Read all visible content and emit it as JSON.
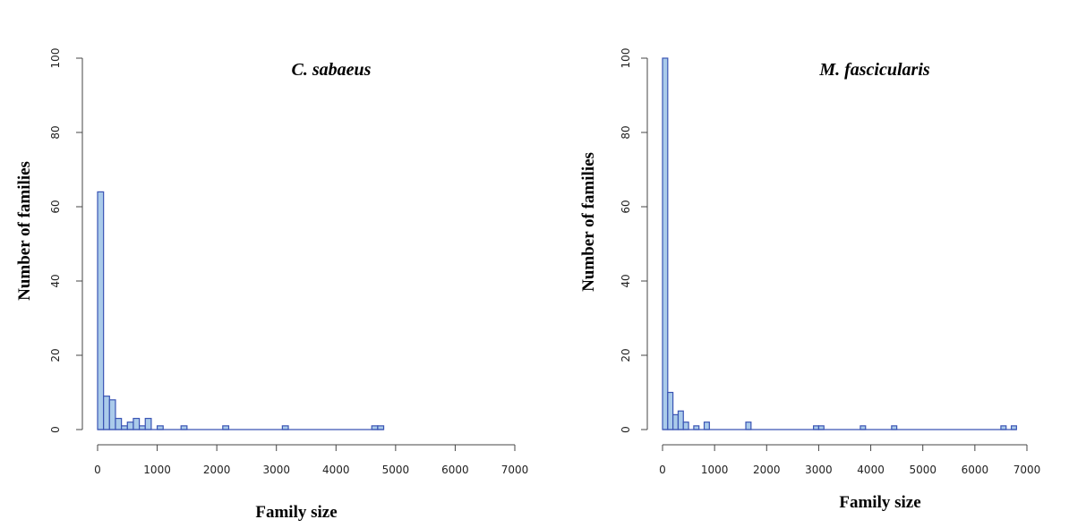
{
  "chart_data": [
    {
      "type": "bar",
      "title": "C. sabaeus",
      "xlabel": "Family size",
      "ylabel": "Number of families",
      "xlim": [
        0,
        7000
      ],
      "ylim": [
        0,
        100
      ],
      "x_ticks": [
        "0",
        "1000",
        "2000",
        "3000",
        "4000",
        "5000",
        "6000",
        "7000"
      ],
      "y_ticks": [
        "0",
        "20",
        "40",
        "60",
        "80",
        "100"
      ],
      "bin_width": 100,
      "bins": [
        {
          "start": 0,
          "count": 64
        },
        {
          "start": 100,
          "count": 9
        },
        {
          "start": 200,
          "count": 8
        },
        {
          "start": 300,
          "count": 3
        },
        {
          "start": 400,
          "count": 1
        },
        {
          "start": 500,
          "count": 2
        },
        {
          "start": 600,
          "count": 3
        },
        {
          "start": 700,
          "count": 1
        },
        {
          "start": 800,
          "count": 3
        },
        {
          "start": 1000,
          "count": 1
        },
        {
          "start": 1400,
          "count": 1
        },
        {
          "start": 2100,
          "count": 1
        },
        {
          "start": 3100,
          "count": 1
        },
        {
          "start": 4600,
          "count": 1
        },
        {
          "start": 4700,
          "count": 1
        }
      ],
      "data_range": [
        0,
        4800
      ],
      "colors": {
        "fill": "#aacbea",
        "stroke": "#3a54b4"
      }
    },
    {
      "type": "bar",
      "title": "M. fascicularis",
      "xlabel": "Family size",
      "ylabel": "Number of families",
      "xlim": [
        0,
        7000
      ],
      "ylim": [
        0,
        100
      ],
      "x_ticks": [
        "0",
        "1000",
        "2000",
        "3000",
        "4000",
        "5000",
        "6000",
        "7000"
      ],
      "y_ticks": [
        "0",
        "20",
        "40",
        "60",
        "80",
        "100"
      ],
      "bin_width": 100,
      "bins": [
        {
          "start": 0,
          "count": 100
        },
        {
          "start": 100,
          "count": 10
        },
        {
          "start": 200,
          "count": 4
        },
        {
          "start": 300,
          "count": 5
        },
        {
          "start": 400,
          "count": 2
        },
        {
          "start": 600,
          "count": 1
        },
        {
          "start": 800,
          "count": 2
        },
        {
          "start": 1600,
          "count": 2
        },
        {
          "start": 2900,
          "count": 1
        },
        {
          "start": 3000,
          "count": 1
        },
        {
          "start": 3800,
          "count": 1
        },
        {
          "start": 4400,
          "count": 1
        },
        {
          "start": 6500,
          "count": 1
        },
        {
          "start": 6700,
          "count": 1
        }
      ],
      "data_range": [
        0,
        6800
      ],
      "colors": {
        "fill": "#aacbea",
        "stroke": "#3a54b4"
      }
    }
  ]
}
